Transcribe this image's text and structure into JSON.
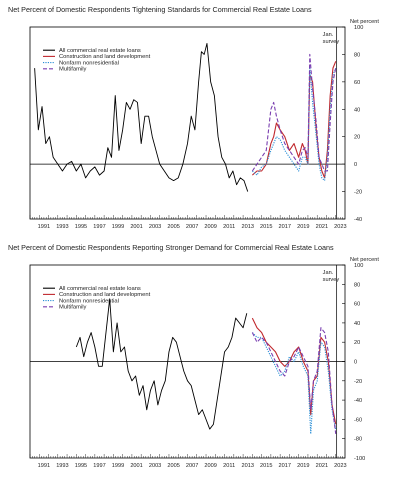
{
  "chart_data": [
    {
      "type": "line",
      "title": "Net Percent of Domestic Respondents Tightening Standards for Commercial Real Estate Loans",
      "ylabel": "Net percent",
      "ylim": [
        -40,
        100
      ],
      "yticks": [
        -40,
        -20,
        0,
        20,
        40,
        60,
        80,
        100
      ],
      "xlim": [
        1990,
        2024
      ],
      "xticks": [
        "1991",
        "1993",
        "1995",
        "1997",
        "1999",
        "2001",
        "2003",
        "2005",
        "2007",
        "2009",
        "2011",
        "2013",
        "2015",
        "2017",
        "2019",
        "2021",
        "2023"
      ],
      "annotation": "Jan. survey",
      "annotation_x": 2023.1,
      "legend_position": "top-left",
      "series": [
        {
          "name": "All commercial real estate loans",
          "color": "#000000",
          "dash": "",
          "x": [
            1990.5,
            1990.9,
            1991.3,
            1991.7,
            1992.1,
            1992.5,
            1993.0,
            1993.5,
            1994.0,
            1994.5,
            1995.0,
            1995.5,
            1996.0,
            1996.5,
            1997.0,
            1997.5,
            1998.0,
            1998.4,
            1998.8,
            1999.2,
            1999.6,
            2000.0,
            2000.4,
            2000.8,
            2001.2,
            2001.6,
            2002.0,
            2002.4,
            2002.8,
            2003.2,
            2003.6,
            2004.0,
            2004.5,
            2005.0,
            2005.5,
            2006.0,
            2006.5,
            2007.0,
            2007.4,
            2007.8,
            2008.2,
            2008.5,
            2008.8,
            2009.1,
            2009.5,
            2009.9,
            2010.3,
            2010.7,
            2011.1,
            2011.5,
            2011.9,
            2012.3,
            2012.7,
            2013.1,
            2013.5
          ],
          "y": [
            70,
            25,
            42,
            15,
            20,
            5,
            0,
            -5,
            0,
            2,
            -5,
            0,
            -10,
            -5,
            -2,
            -8,
            -5,
            12,
            5,
            50,
            10,
            25,
            45,
            40,
            47,
            45,
            15,
            35,
            35,
            20,
            10,
            0,
            -5,
            -10,
            -12,
            -10,
            0,
            15,
            35,
            25,
            60,
            82,
            80,
            88,
            60,
            50,
            20,
            5,
            0,
            -10,
            -5,
            -15,
            -10,
            -12,
            -20
          ]
        },
        {
          "name": "Construction and land development",
          "color": "#c0282d",
          "dash": "",
          "x": [
            2014.0,
            2014.5,
            2015.0,
            2015.5,
            2016.0,
            2016.3,
            2016.6,
            2017.0,
            2017.5,
            2018.0,
            2018.5,
            2019.0,
            2019.4,
            2019.7,
            2020.0,
            2020.2,
            2020.5,
            2020.9,
            2021.2,
            2021.5,
            2021.8,
            2022.1,
            2022.4,
            2022.7,
            2023.0
          ],
          "y": [
            -8,
            -5,
            -5,
            0,
            15,
            20,
            30,
            25,
            20,
            10,
            15,
            5,
            15,
            10,
            0,
            65,
            60,
            25,
            5,
            -5,
            -10,
            10,
            50,
            70,
            75
          ]
        },
        {
          "name": "Nonfarm nonresidential",
          "color": "#2b8fd6",
          "dash": "1.2,1.2",
          "x": [
            2014.0,
            2014.5,
            2015.0,
            2015.5,
            2016.0,
            2016.3,
            2016.6,
            2017.0,
            2017.5,
            2018.0,
            2018.5,
            2019.0,
            2019.4,
            2019.7,
            2020.0,
            2020.2,
            2020.5,
            2020.9,
            2021.2,
            2021.5,
            2021.8,
            2022.1,
            2022.4,
            2022.7,
            2023.0
          ],
          "y": [
            -5,
            -8,
            -2,
            0,
            10,
            15,
            20,
            18,
            10,
            5,
            0,
            -5,
            5,
            5,
            0,
            70,
            45,
            20,
            0,
            -10,
            -12,
            5,
            40,
            65,
            70
          ]
        },
        {
          "name": "Multifamily",
          "color": "#7a3fb0",
          "dash": "4,2",
          "x": [
            2014.0,
            2014.5,
            2015.0,
            2015.5,
            2016.0,
            2016.3,
            2016.6,
            2017.0,
            2017.5,
            2018.0,
            2018.5,
            2019.0,
            2019.4,
            2019.7,
            2020.0,
            2020.2,
            2020.5,
            2020.9,
            2021.2,
            2021.5,
            2021.8,
            2022.1,
            2022.4,
            2022.7,
            2023.0
          ],
          "y": [
            -5,
            0,
            5,
            10,
            40,
            45,
            35,
            25,
            15,
            10,
            5,
            0,
            10,
            12,
            5,
            80,
            55,
            30,
            5,
            0,
            -5,
            -5,
            30,
            60,
            70
          ]
        }
      ]
    },
    {
      "type": "line",
      "title": "Net Percent of Domestic Respondents Reporting Stronger Demand for Commercial Real Estate Loans",
      "ylabel": "Net percent",
      "ylim": [
        -100,
        100
      ],
      "yticks": [
        -100,
        -80,
        -60,
        -40,
        -20,
        0,
        20,
        40,
        60,
        80,
        100
      ],
      "xlim": [
        1990,
        2024
      ],
      "xticks": [
        "1991",
        "1993",
        "1995",
        "1997",
        "1999",
        "2001",
        "2003",
        "2005",
        "2007",
        "2009",
        "2011",
        "2013",
        "2015",
        "2017",
        "2019",
        "2021",
        "2023"
      ],
      "annotation": "Jan. survey",
      "annotation_x": 2023.1,
      "legend_position": "top-left",
      "series": [
        {
          "name": "All commercial real estate loans",
          "color": "#000000",
          "dash": "",
          "x": [
            1995.0,
            1995.4,
            1995.8,
            1996.2,
            1996.6,
            1997.0,
            1997.4,
            1997.8,
            1998.2,
            1998.6,
            1999.0,
            1999.4,
            1999.8,
            2000.2,
            2000.6,
            2001.0,
            2001.4,
            2001.8,
            2002.2,
            2002.6,
            2003.0,
            2003.4,
            2003.8,
            2004.2,
            2004.6,
            2005.0,
            2005.4,
            2005.8,
            2006.2,
            2006.6,
            2007.0,
            2007.4,
            2007.8,
            2008.2,
            2008.6,
            2009.0,
            2009.4,
            2009.8,
            2010.2,
            2010.6,
            2011.0,
            2011.4,
            2011.8,
            2012.2,
            2012.6,
            2013.0,
            2013.4
          ],
          "y": [
            15,
            25,
            5,
            20,
            30,
            15,
            -5,
            -5,
            30,
            65,
            10,
            40,
            10,
            15,
            -10,
            -20,
            -15,
            -35,
            -25,
            -50,
            -30,
            -20,
            -45,
            -30,
            -20,
            10,
            25,
            20,
            5,
            -10,
            -20,
            -25,
            -40,
            -55,
            -50,
            -60,
            -70,
            -65,
            -40,
            -15,
            10,
            15,
            25,
            45,
            40,
            35,
            50
          ]
        },
        {
          "name": "Construction and land development",
          "color": "#c0282d",
          "dash": "",
          "x": [
            2014.0,
            2014.5,
            2015.0,
            2015.5,
            2016.0,
            2016.5,
            2017.0,
            2017.5,
            2018.0,
            2018.5,
            2019.0,
            2019.5,
            2020.0,
            2020.3,
            2020.6,
            2021.0,
            2021.4,
            2021.8,
            2022.2,
            2022.6,
            2023.0
          ],
          "y": [
            45,
            35,
            30,
            20,
            15,
            10,
            0,
            -5,
            0,
            10,
            15,
            0,
            -10,
            -55,
            -20,
            -15,
            25,
            20,
            0,
            -45,
            -65
          ]
        },
        {
          "name": "Nonfarm nonresidential",
          "color": "#2b8fd6",
          "dash": "1.2,1.2",
          "x": [
            2014.0,
            2014.5,
            2015.0,
            2015.5,
            2016.0,
            2016.5,
            2017.0,
            2017.5,
            2018.0,
            2018.5,
            2019.0,
            2019.5,
            2020.0,
            2020.3,
            2020.6,
            2021.0,
            2021.4,
            2021.8,
            2022.2,
            2022.6,
            2023.0
          ],
          "y": [
            30,
            25,
            25,
            15,
            5,
            -5,
            -15,
            -10,
            5,
            0,
            10,
            -5,
            -15,
            -75,
            -30,
            -20,
            20,
            15,
            -10,
            -50,
            -70
          ]
        },
        {
          "name": "Multifamily",
          "color": "#7a3fb0",
          "dash": "4,2",
          "x": [
            2014.0,
            2014.5,
            2015.0,
            2015.5,
            2016.0,
            2016.5,
            2017.0,
            2017.5,
            2018.0,
            2018.5,
            2019.0,
            2019.5,
            2020.0,
            2020.3,
            2020.6,
            2021.0,
            2021.4,
            2021.8,
            2022.2,
            2022.6,
            2023.0
          ],
          "y": [
            30,
            20,
            25,
            20,
            10,
            0,
            -10,
            -15,
            0,
            5,
            15,
            5,
            -5,
            -50,
            -20,
            -10,
            35,
            30,
            10,
            -45,
            -75
          ]
        }
      ]
    }
  ]
}
